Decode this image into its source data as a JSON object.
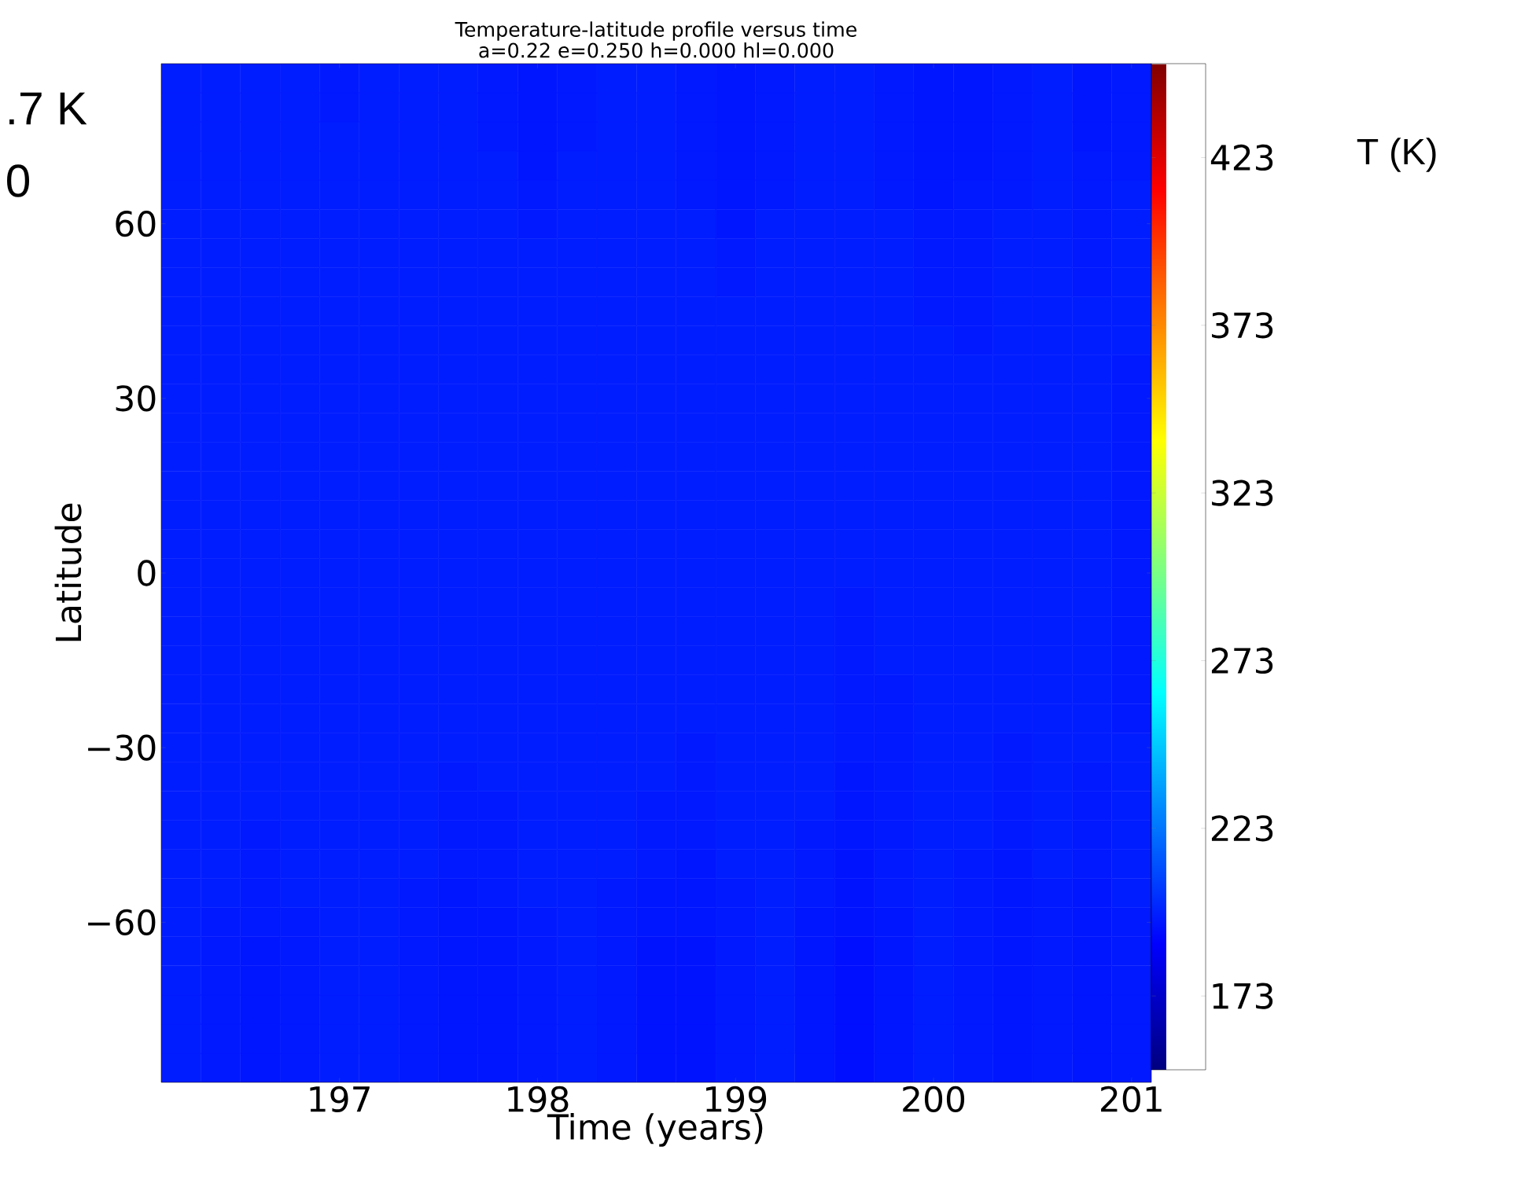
{
  "chart_data": {
    "type": "heatmap",
    "title": "Temperature-latitude profile versus time",
    "subtitle": "a=0.22 e=0.250 h=0.000 hl=0.000",
    "xlabel": "Time (years)",
    "ylabel": "Latitude",
    "clabel": "T (K)",
    "annotations": [
      ".7 K",
      "0"
    ],
    "categories": [
      null,
      null,
      null,
      null,
      "197",
      null,
      null,
      null,
      null,
      "198",
      null,
      null,
      null,
      null,
      "199",
      null,
      null,
      null,
      null,
      "200",
      null,
      null,
      null,
      null,
      "201"
    ],
    "y_categories": [
      null,
      null,
      null,
      null,
      null,
      "60",
      null,
      null,
      null,
      null,
      null,
      "30",
      null,
      null,
      null,
      null,
      null,
      "0",
      null,
      null,
      null,
      null,
      null,
      "−30",
      null,
      null,
      null,
      null,
      null,
      "−60",
      null,
      null,
      null,
      null,
      null
    ],
    "clim": [
      151,
      451
    ],
    "cticks": [
      173,
      223,
      273,
      323,
      373,
      423
    ],
    "cells": [
      [
        197,
        197,
        197,
        197,
        196,
        197,
        197,
        197,
        196,
        195,
        196,
        197,
        197,
        196,
        195,
        196,
        197,
        197,
        196,
        195,
        195,
        196,
        197,
        195,
        196
      ],
      [
        197,
        197,
        197,
        197,
        196,
        197,
        197,
        197,
        196,
        195,
        196,
        197,
        197,
        196,
        195,
        196,
        197,
        197,
        196,
        195,
        195,
        196,
        197,
        195,
        196
      ],
      [
        197,
        197,
        197,
        197,
        197,
        197,
        197,
        197,
        196,
        195,
        196,
        197,
        197,
        196,
        195,
        196,
        197,
        197,
        196,
        195,
        195,
        196,
        197,
        195,
        196
      ],
      [
        197,
        197,
        197,
        197,
        197,
        197,
        197,
        197,
        197,
        195,
        197,
        197,
        197,
        196,
        195,
        196,
        197,
        197,
        196,
        195,
        195,
        196,
        197,
        196,
        196
      ],
      [
        197,
        197,
        197,
        197,
        197,
        197,
        197,
        197,
        197,
        196,
        197,
        197,
        197,
        196,
        195,
        196,
        197,
        197,
        196,
        195,
        196,
        196,
        197,
        196,
        197
      ],
      [
        197,
        197,
        197,
        197,
        197,
        197,
        197,
        197,
        197,
        196,
        197,
        197,
        197,
        197,
        195,
        197,
        197,
        197,
        197,
        196,
        196,
        197,
        197,
        196,
        197
      ],
      [
        197,
        197,
        197,
        197,
        197,
        197,
        197,
        197,
        197,
        197,
        197,
        197,
        197,
        197,
        196,
        197,
        197,
        197,
        197,
        196,
        196,
        197,
        197,
        196,
        197
      ],
      [
        197,
        197,
        197,
        197,
        197,
        197,
        197,
        197,
        197,
        197,
        197,
        197,
        197,
        197,
        196,
        197,
        197,
        197,
        197,
        196,
        196,
        197,
        197,
        196,
        197
      ],
      [
        197,
        197,
        197,
        197,
        197,
        197,
        197,
        197,
        197,
        197,
        197,
        197,
        197,
        197,
        197,
        197,
        197,
        197,
        197,
        196,
        196,
        197,
        197,
        197,
        197
      ],
      [
        197,
        197,
        197,
        197,
        197,
        197,
        197,
        197,
        197,
        197,
        197,
        197,
        197,
        197,
        197,
        197,
        197,
        197,
        197,
        197,
        196,
        197,
        197,
        197,
        197
      ],
      [
        197,
        197,
        197,
        197,
        197,
        197,
        197,
        197,
        197,
        197,
        197,
        197,
        197,
        197,
        197,
        197,
        197,
        197,
        197,
        197,
        197,
        197,
        197,
        197,
        196
      ],
      [
        197,
        197,
        197,
        197,
        197,
        197,
        197,
        197,
        197,
        197,
        197,
        197,
        197,
        197,
        197,
        197,
        197,
        197,
        197,
        197,
        197,
        197,
        197,
        197,
        196
      ],
      [
        197,
        197,
        197,
        197,
        197,
        197,
        197,
        197,
        197,
        197,
        197,
        197,
        197,
        197,
        197,
        197,
        197,
        197,
        197,
        197,
        197,
        197,
        197,
        197,
        196
      ],
      [
        197,
        197,
        197,
        197,
        197,
        197,
        197,
        197,
        197,
        197,
        197,
        197,
        197,
        197,
        197,
        197,
        197,
        197,
        197,
        197,
        197,
        197,
        197,
        197,
        196
      ],
      [
        197,
        197,
        197,
        197,
        197,
        197,
        197,
        197,
        197,
        197,
        197,
        197,
        197,
        197,
        197,
        197,
        197,
        197,
        197,
        197,
        197,
        197,
        197,
        197,
        196
      ],
      [
        197,
        197,
        197,
        197,
        197,
        197,
        197,
        197,
        197,
        197,
        197,
        197,
        197,
        197,
        197,
        197,
        197,
        197,
        197,
        197,
        197,
        197,
        197,
        197,
        196
      ],
      [
        197,
        197,
        197,
        197,
        197,
        197,
        197,
        197,
        197,
        197,
        197,
        197,
        197,
        197,
        197,
        197,
        197,
        197,
        197,
        197,
        197,
        197,
        197,
        197,
        196
      ],
      [
        197,
        197,
        197,
        197,
        197,
        197,
        197,
        197,
        197,
        197,
        197,
        197,
        197,
        197,
        197,
        197,
        197,
        197,
        197,
        197,
        197,
        197,
        197,
        197,
        196
      ],
      [
        197,
        197,
        197,
        197,
        197,
        197,
        197,
        197,
        197,
        197,
        197,
        197,
        197,
        197,
        197,
        197,
        197,
        196,
        197,
        197,
        197,
        197,
        197,
        197,
        196
      ],
      [
        197,
        197,
        197,
        197,
        197,
        197,
        197,
        197,
        197,
        197,
        197,
        197,
        197,
        197,
        197,
        197,
        197,
        196,
        197,
        197,
        197,
        197,
        197,
        197,
        196
      ],
      [
        197,
        197,
        197,
        197,
        197,
        197,
        197,
        197,
        197,
        197,
        197,
        197,
        197,
        197,
        197,
        197,
        197,
        196,
        197,
        197,
        197,
        197,
        197,
        197,
        196
      ],
      [
        197,
        197,
        197,
        197,
        197,
        197,
        197,
        197,
        197,
        197,
        197,
        197,
        197,
        197,
        197,
        197,
        197,
        196,
        196,
        197,
        197,
        197,
        197,
        197,
        196
      ],
      [
        197,
        197,
        197,
        197,
        197,
        197,
        197,
        197,
        197,
        197,
        197,
        197,
        197,
        197,
        197,
        197,
        197,
        196,
        196,
        197,
        197,
        197,
        197,
        197,
        196
      ],
      [
        197,
        197,
        197,
        197,
        197,
        197,
        197,
        197,
        197,
        197,
        197,
        197,
        197,
        196,
        197,
        197,
        197,
        196,
        196,
        197,
        197,
        196,
        197,
        197,
        197
      ],
      [
        197,
        197,
        197,
        197,
        197,
        197,
        197,
        196,
        197,
        197,
        197,
        197,
        197,
        196,
        197,
        197,
        197,
        195,
        196,
        197,
        197,
        196,
        197,
        196,
        197
      ],
      [
        197,
        197,
        197,
        197,
        197,
        197,
        197,
        196,
        196,
        197,
        197,
        197,
        196,
        196,
        197,
        197,
        197,
        195,
        196,
        197,
        197,
        196,
        197,
        196,
        197
      ],
      [
        197,
        197,
        196,
        197,
        197,
        197,
        197,
        196,
        196,
        197,
        197,
        197,
        196,
        196,
        197,
        197,
        196,
        195,
        196,
        197,
        197,
        196,
        197,
        196,
        197
      ],
      [
        197,
        197,
        196,
        197,
        197,
        197,
        197,
        196,
        196,
        197,
        197,
        197,
        196,
        195,
        197,
        197,
        196,
        194,
        196,
        197,
        196,
        195,
        197,
        196,
        197
      ],
      [
        197,
        197,
        196,
        197,
        197,
        197,
        196,
        195,
        196,
        197,
        197,
        196,
        195,
        195,
        196,
        197,
        196,
        194,
        196,
        197,
        196,
        195,
        196,
        195,
        197
      ],
      [
        197,
        196,
        196,
        196,
        197,
        197,
        196,
        195,
        195,
        196,
        197,
        196,
        195,
        195,
        196,
        197,
        195,
        194,
        195,
        197,
        196,
        195,
        196,
        195,
        196
      ],
      [
        197,
        196,
        195,
        196,
        197,
        197,
        196,
        195,
        195,
        196,
        197,
        196,
        194,
        194,
        196,
        197,
        195,
        193,
        195,
        197,
        196,
        195,
        196,
        195,
        196
      ],
      [
        197,
        196,
        195,
        196,
        197,
        197,
        196,
        195,
        195,
        196,
        197,
        196,
        194,
        194,
        196,
        197,
        195,
        193,
        195,
        197,
        196,
        195,
        196,
        195,
        196
      ],
      [
        197,
        196,
        195,
        196,
        197,
        197,
        196,
        195,
        195,
        196,
        197,
        196,
        194,
        194,
        196,
        197,
        195,
        193,
        195,
        197,
        196,
        195,
        196,
        195,
        196
      ],
      [
        197,
        196,
        195,
        196,
        197,
        197,
        196,
        195,
        195,
        196,
        197,
        196,
        194,
        194,
        196,
        197,
        195,
        193,
        195,
        197,
        196,
        195,
        196,
        195,
        196
      ],
      [
        197,
        196,
        195,
        196,
        197,
        197,
        196,
        195,
        195,
        196,
        197,
        196,
        194,
        194,
        196,
        197,
        195,
        193,
        195,
        197,
        196,
        195,
        196,
        195,
        196
      ]
    ]
  }
}
